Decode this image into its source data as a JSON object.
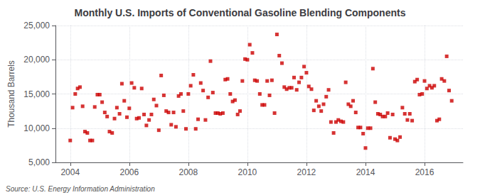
{
  "chart_data": {
    "type": "scatter",
    "title": "Monthly U.S. Imports of Conventional Gasoline Blending Components",
    "ylabel": "Thousand Barrels",
    "annotations": [
      "Source: U.S. Energy Information Administration"
    ],
    "color": "#cc0000",
    "marker": "square",
    "grid": true,
    "xlim": [
      2003.5,
      2017.3
    ],
    "ylim": [
      5000,
      25000
    ],
    "xticks": [
      2004,
      2006,
      2008,
      2010,
      2012,
      2014,
      2016
    ],
    "yticks": [
      {
        "value": 5000,
        "label": "5,000"
      },
      {
        "value": 10000,
        "label": "10,000"
      },
      {
        "value": 15000,
        "label": "15,000"
      },
      {
        "value": 20000,
        "label": "20,000"
      },
      {
        "value": 25000,
        "label": "25,000"
      }
    ],
    "x": [
      2004.0,
      2004.08,
      2004.17,
      2004.25,
      2004.33,
      2004.42,
      2004.5,
      2004.58,
      2004.67,
      2004.75,
      2004.83,
      2004.92,
      2005.0,
      2005.08,
      2005.17,
      2005.25,
      2005.33,
      2005.42,
      2005.5,
      2005.58,
      2005.67,
      2005.75,
      2005.83,
      2005.92,
      2006.0,
      2006.08,
      2006.17,
      2006.25,
      2006.33,
      2006.42,
      2006.5,
      2006.58,
      2006.67,
      2006.75,
      2006.83,
      2006.92,
      2007.0,
      2007.08,
      2007.17,
      2007.25,
      2007.33,
      2007.42,
      2007.5,
      2007.58,
      2007.67,
      2007.75,
      2007.83,
      2007.92,
      2008.0,
      2008.08,
      2008.17,
      2008.25,
      2008.33,
      2008.42,
      2008.5,
      2008.58,
      2008.67,
      2008.75,
      2008.83,
      2008.92,
      2009.0,
      2009.08,
      2009.17,
      2009.25,
      2009.33,
      2009.42,
      2009.5,
      2009.58,
      2009.67,
      2009.75,
      2009.83,
      2009.92,
      2010.0,
      2010.08,
      2010.17,
      2010.25,
      2010.33,
      2010.42,
      2010.5,
      2010.58,
      2010.67,
      2010.75,
      2010.83,
      2010.92,
      2011.0,
      2011.08,
      2011.17,
      2011.25,
      2011.33,
      2011.42,
      2011.5,
      2011.58,
      2011.67,
      2011.75,
      2011.83,
      2011.92,
      2012.0,
      2012.08,
      2012.17,
      2012.25,
      2012.33,
      2012.42,
      2012.5,
      2012.58,
      2012.67,
      2012.75,
      2012.83,
      2012.92,
      2013.0,
      2013.08,
      2013.17,
      2013.25,
      2013.33,
      2013.42,
      2013.5,
      2013.58,
      2013.67,
      2013.75,
      2013.83,
      2013.92,
      2014.0,
      2014.08,
      2014.17,
      2014.25,
      2014.33,
      2014.42,
      2014.5,
      2014.58,
      2014.67,
      2014.75,
      2014.83,
      2014.92,
      2015.0,
      2015.08,
      2015.17,
      2015.25,
      2015.33,
      2015.42,
      2015.5,
      2015.58,
      2015.67,
      2015.75,
      2015.83,
      2015.92,
      2016.0,
      2016.08,
      2016.17,
      2016.25,
      2016.33,
      2016.42,
      2016.5,
      2016.58,
      2016.67,
      2016.75,
      2016.83,
      2016.92
    ],
    "values": [
      8200,
      13000,
      15000,
      15800,
      16000,
      13200,
      9500,
      9300,
      8200,
      8200,
      13100,
      14900,
      14900,
      13800,
      12300,
      11700,
      9500,
      9300,
      11400,
      13000,
      12100,
      16500,
      14000,
      11600,
      12900,
      16600,
      15900,
      11400,
      11500,
      15800,
      12000,
      10400,
      11200,
      12000,
      14200,
      13300,
      9700,
      17700,
      14800,
      12500,
      12300,
      10500,
      12300,
      10200,
      14700,
      15000,
      12500,
      9900,
      15000,
      16200,
      17800,
      9900,
      11300,
      16600,
      15500,
      11200,
      14500,
      19800,
      15200,
      12200,
      12200,
      12100,
      12200,
      17100,
      17200,
      15000,
      13900,
      14100,
      12000,
      12500,
      16900,
      20100,
      20000,
      22200,
      21000,
      17000,
      16900,
      15000,
      13400,
      13400,
      16900,
      14800,
      17000,
      12200,
      23700,
      20600,
      19500,
      16000,
      15700,
      15900,
      15900,
      17400,
      15600,
      16700,
      17400,
      19000,
      18100,
      16100,
      15700,
      12600,
      14000,
      13200,
      12500,
      13500,
      14600,
      15600,
      10900,
      9300,
      10900,
      11200,
      11000,
      10900,
      16700,
      13500,
      13200,
      14000,
      12300,
      10100,
      10100,
      9200,
      7100,
      10000,
      10000,
      18700,
      13800,
      12100,
      12000,
      11700,
      11700,
      12200,
      8600,
      12000,
      8400,
      8200,
      8700,
      13000,
      12100,
      11200,
      12100,
      11100,
      16800,
      17100,
      14900,
      15000,
      16900,
      15800,
      16200,
      15900,
      16200,
      11100,
      11300,
      17200,
      16900,
      20500,
      15500,
      14000
    ]
  }
}
